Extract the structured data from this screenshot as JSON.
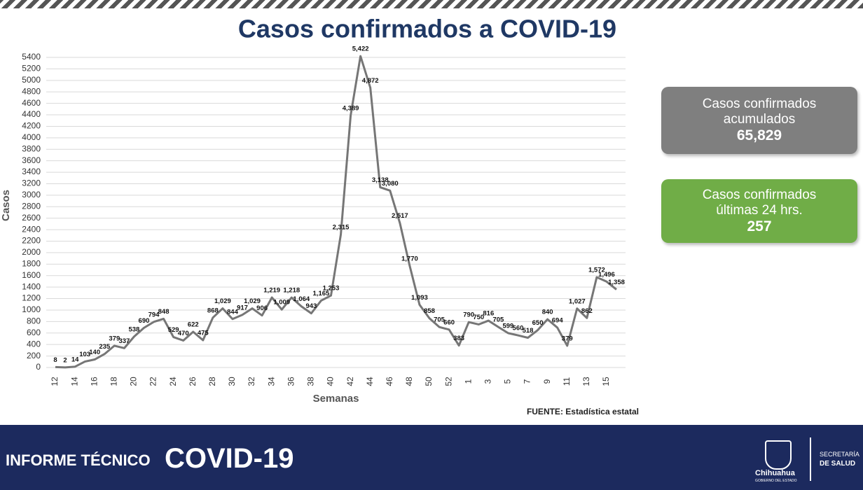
{
  "chart_data": {
    "type": "line",
    "title": "Casos confirmados a COVID-19",
    "x_label": "Semanas",
    "y_label": "Casos",
    "source": "FUENTE: Estadística estatal",
    "color": "#767676",
    "grid": true,
    "categories": [
      "12",
      null,
      "14",
      null,
      "16",
      null,
      "18",
      null,
      "20",
      null,
      "22",
      null,
      "24",
      null,
      "26",
      null,
      "28",
      null,
      "30",
      null,
      "32",
      null,
      "34",
      null,
      "36",
      null,
      "38",
      null,
      "40",
      null,
      "42",
      null,
      "44",
      null,
      "46",
      null,
      "48",
      null,
      "50",
      null,
      "52",
      null,
      "1",
      null,
      "3",
      null,
      "5",
      null,
      "7",
      null,
      "9",
      null,
      "11",
      null,
      "13",
      null,
      "15",
      null
    ],
    "values": [
      8,
      2,
      14,
      103,
      140,
      235,
      379,
      337,
      538,
      690,
      794,
      848,
      529,
      470,
      622,
      475,
      868,
      1029,
      844,
      917,
      1029,
      906,
      1219,
      1009,
      1218,
      1064,
      943,
      1165,
      1253,
      2315,
      4389,
      5422,
      4872,
      3138,
      3080,
      2517,
      1770,
      1093,
      858,
      705,
      660,
      383,
      790,
      750,
      816,
      705,
      599,
      560,
      518,
      650,
      840,
      694,
      379,
      1027,
      862,
      1572,
      1496,
      1358
    ],
    "value_labels": [
      "8",
      "2",
      "14",
      "103",
      "140",
      "235",
      "379",
      "337",
      "538",
      "690",
      "794",
      "848",
      "529",
      "470",
      "622",
      "475",
      "868",
      "1,029",
      "844",
      "917",
      "1,029",
      "906",
      "1,219",
      "1,009",
      "1,218",
      "1,064",
      "943",
      "1,165",
      "1,253",
      "2,315",
      "4,389",
      "5,422",
      "4,872",
      "3,138",
      "3,080",
      "2,517",
      "1,770",
      "1,093",
      "858",
      "705",
      "660",
      "383",
      "790",
      "750",
      "816",
      "705",
      "599",
      "560",
      "518",
      "650",
      "840",
      "694",
      "379",
      "1,027",
      "862",
      "1,572",
      "1,496",
      "1,358"
    ],
    "ylim": [
      0,
      5400
    ],
    "yticks": [
      0,
      200,
      400,
      600,
      800,
      1000,
      1200,
      1400,
      1600,
      1800,
      2000,
      2200,
      2400,
      2600,
      2800,
      3000,
      3200,
      3400,
      3600,
      3800,
      4000,
      4200,
      4400,
      4600,
      4800,
      5000,
      5200,
      5400
    ]
  },
  "summary": [
    {
      "label": "Casos confirmados acumulados",
      "value": "65,829"
    },
    {
      "label": "Casos confirmados últimas 24 hrs.",
      "value": "257"
    }
  ],
  "footer": {
    "left": "INFORME TÉCNICO",
    "title": "COVID-19",
    "brand": "Chihuahua",
    "brand_sub": "GOBIERNO DEL ESTADO",
    "dept1": "SECRETARÍA",
    "dept2": "DE SALUD"
  }
}
